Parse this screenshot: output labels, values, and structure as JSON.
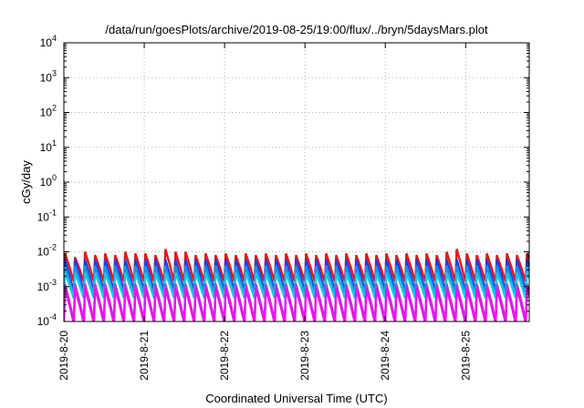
{
  "chart_data": {
    "type": "line",
    "title": "/data/run/goesPlots/archive/2019-08-25/19:00/flux/../bryn/5daysMars.plot",
    "xlabel": "Coordinated Universal Time (UTC)",
    "ylabel": "cGy/day",
    "yscale": "log",
    "ylim": [
      0.0001,
      10000
    ],
    "xlim": [
      "2019-08-20",
      "2019-08-25 19:00"
    ],
    "grid": true,
    "legend": "none",
    "x_ticks": [
      {
        "date": "2019-08-20",
        "label": "2019-8-20"
      },
      {
        "date": "2019-08-21",
        "label": "2019-8-21"
      },
      {
        "date": "2019-08-22",
        "label": "2019-8-22"
      },
      {
        "date": "2019-08-23",
        "label": "2019-8-23"
      },
      {
        "date": "2019-08-24",
        "label": "2019-8-24"
      },
      {
        "date": "2019-08-25",
        "label": "2019-8-25"
      }
    ],
    "y_ticks": [
      {
        "value": 0.0001,
        "base": "10",
        "exp": "-4"
      },
      {
        "value": 0.001,
        "base": "10",
        "exp": "-3"
      },
      {
        "value": 0.01,
        "base": "10",
        "exp": "-2"
      },
      {
        "value": 0.1,
        "base": "10",
        "exp": "-1"
      },
      {
        "value": 1,
        "base": "10",
        "exp": "0"
      },
      {
        "value": 10,
        "base": "10",
        "exp": "1"
      },
      {
        "value": 100,
        "base": "10",
        "exp": "2"
      },
      {
        "value": 1000,
        "base": "10",
        "exp": "3"
      },
      {
        "value": 10000,
        "base": "10",
        "exp": "4"
      }
    ],
    "sawtooth_peak_times": [
      "2019-08-20 00:00",
      "2019-08-20 03:00",
      "2019-08-20 06:00",
      "2019-08-20 09:00",
      "2019-08-20 12:00",
      "2019-08-20 15:00",
      "2019-08-20 18:00",
      "2019-08-20 21:00",
      "2019-08-21 00:00",
      "2019-08-21 03:00",
      "2019-08-21 06:00",
      "2019-08-21 09:00",
      "2019-08-21 12:00",
      "2019-08-21 15:00",
      "2019-08-21 18:00",
      "2019-08-21 21:00",
      "2019-08-22 00:00",
      "2019-08-22 03:00",
      "2019-08-22 06:00",
      "2019-08-22 09:00",
      "2019-08-22 12:00",
      "2019-08-22 15:00",
      "2019-08-22 18:00",
      "2019-08-22 21:00",
      "2019-08-23 00:00",
      "2019-08-23 03:00",
      "2019-08-23 06:00",
      "2019-08-23 09:00",
      "2019-08-23 12:00",
      "2019-08-23 15:00",
      "2019-08-23 18:00",
      "2019-08-23 21:00",
      "2019-08-24 00:00",
      "2019-08-24 03:00",
      "2019-08-24 06:00",
      "2019-08-24 09:00",
      "2019-08-24 12:00",
      "2019-08-24 15:00",
      "2019-08-24 18:00",
      "2019-08-24 21:00",
      "2019-08-25 00:00",
      "2019-08-25 03:00",
      "2019-08-25 06:00",
      "2019-08-25 09:00",
      "2019-08-25 12:00",
      "2019-08-25 15:00",
      "2019-08-25 18:00"
    ],
    "series": [
      {
        "color": "#e8161b",
        "peak": 0.009,
        "trough": 0.0015,
        "peaks": [
          0.009,
          0.007,
          0.01,
          0.008,
          0.009,
          0.008,
          0.01,
          0.009,
          0.009,
          0.008,
          0.012,
          0.01,
          0.01,
          0.008,
          0.009,
          0.008,
          0.009,
          0.008,
          0.009,
          0.008,
          0.009,
          0.008,
          0.009,
          0.008,
          0.009,
          0.008,
          0.009,
          0.008,
          0.009,
          0.008,
          0.009,
          0.008,
          0.009,
          0.008,
          0.009,
          0.008,
          0.009,
          0.008,
          0.01,
          0.012,
          0.009,
          0.008,
          0.009,
          0.008,
          0.009,
          0.008,
          0.009
        ]
      },
      {
        "color": "#1f3fe0",
        "peak": 0.006,
        "trough": 0.0008
      },
      {
        "color": "#1a8fe8",
        "peak": 0.004,
        "trough": 0.0006
      },
      {
        "color": "#18c8e0",
        "peak": 0.0025,
        "trough": 0.0005
      },
      {
        "color": "#9a50c8",
        "peak": 0.0012,
        "trough": 0.00012
      },
      {
        "color": "#ee10ee",
        "peak": 0.0009,
        "trough": 0.0001
      }
    ]
  }
}
